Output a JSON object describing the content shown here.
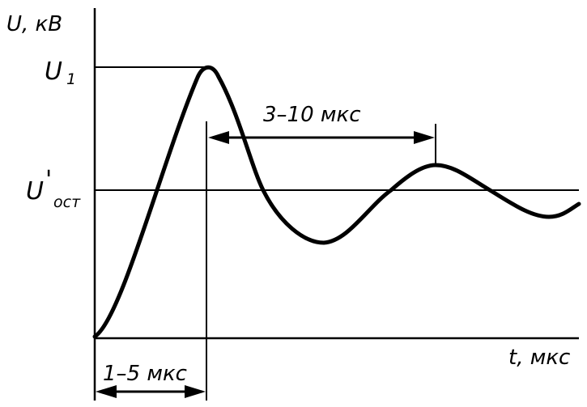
{
  "axes": {
    "y_label": "U, кВ",
    "x_label": "t, мкс"
  },
  "levels": {
    "peak_main": "U",
    "peak_sub": "1",
    "residual_main": "U",
    "residual_prime": "'",
    "residual_sub": "ост"
  },
  "annotations": {
    "front_duration": "1–5 мкс",
    "oscillation_period": "3–10 мкс"
  },
  "colors": {
    "ink": "#000000",
    "background": "#ffffff"
  }
}
